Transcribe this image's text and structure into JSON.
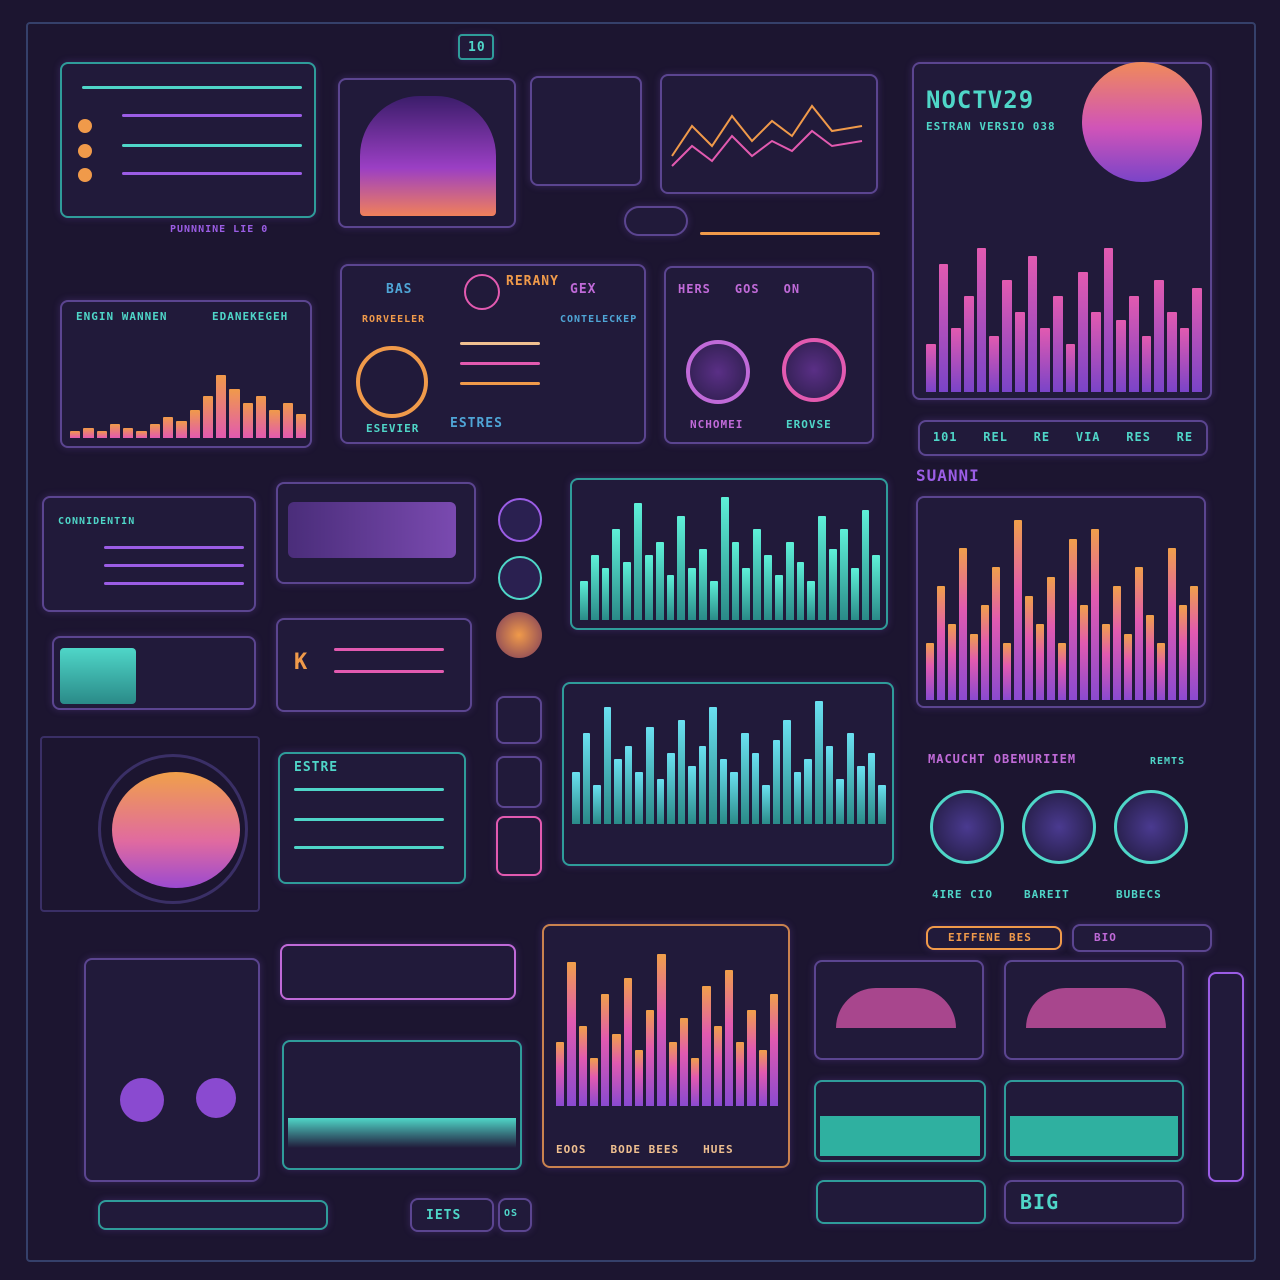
{
  "header": {
    "badge": "10"
  },
  "labels": {
    "top_right_title": "NOCTV29",
    "top_right_sub": "ESTRAN VERSIO 038",
    "panel_a": "PUNNNINE LIE 0",
    "panel_b": "ENGIN WANNEN",
    "panel_c": "EDANEKEGEH",
    "gauge_title": "RERANY",
    "gauge_btn_left": "BAS",
    "gauge_btn_right": "GEX",
    "gauge_sub_left": "RORVEELER",
    "gauge_sub_right": "CONTELECKEP",
    "gauge_foot_left": "ESEVIER",
    "gauge_foot_mid": "ESTRES",
    "knob_btns": [
      "HERS",
      "GOS",
      "ON"
    ],
    "knob_labels": [
      "NCHOMEI",
      "EROVSE"
    ],
    "ratios": [
      "101",
      "REL",
      "RE",
      "VIA",
      "RES",
      "RE"
    ],
    "section_title": "SUANNI",
    "mid_title": "MACUCHT OBEMURIIEM",
    "mid_badge": "REMTS",
    "orbs": [
      "4IRE CIO",
      "BAREIT",
      "BUBECS"
    ],
    "list_title": "CONNIDENTIN",
    "file_title": "ESTRE",
    "bottom_badges": [
      "EIFFENE BES",
      "BIO"
    ],
    "bottom_btns": [
      "IETS",
      "OS"
    ],
    "chart_footer": [
      "EOOS",
      "BODE BEES",
      "HUES"
    ],
    "big_code": "BIG"
  },
  "colors": {
    "teal": "#4fd6c8",
    "purple": "#9b5de5",
    "pink": "#e25ab0",
    "orange": "#f09a4a",
    "bg": "#1c1530"
  },
  "series": {
    "teal_a": [
      0.3,
      0.5,
      0.4,
      0.7,
      0.45,
      0.9,
      0.5,
      0.6,
      0.35,
      0.8,
      0.4,
      0.55,
      0.3,
      0.95,
      0.6,
      0.4,
      0.7,
      0.5,
      0.35,
      0.6,
      0.45,
      0.3,
      0.8,
      0.55,
      0.7,
      0.4,
      0.85,
      0.5
    ],
    "teal_b": [
      0.4,
      0.7,
      0.3,
      0.9,
      0.5,
      0.6,
      0.4,
      0.75,
      0.35,
      0.55,
      0.8,
      0.45,
      0.6,
      0.9,
      0.5,
      0.4,
      0.7,
      0.55,
      0.3,
      0.65,
      0.8,
      0.4,
      0.5,
      0.95,
      0.6,
      0.35,
      0.7,
      0.45,
      0.55,
      0.3
    ],
    "pink_a": [
      0.3,
      0.6,
      0.4,
      0.8,
      0.35,
      0.5,
      0.7,
      0.3,
      0.95,
      0.55,
      0.4,
      0.65,
      0.3,
      0.85,
      0.5,
      0.9,
      0.4,
      0.6,
      0.35,
      0.7,
      0.45,
      0.3,
      0.8,
      0.5,
      0.6
    ],
    "pink_b": [
      0.4,
      0.9,
      0.5,
      0.3,
      0.7,
      0.45,
      0.8,
      0.35,
      0.6,
      0.95,
      0.4,
      0.55,
      0.3,
      0.75,
      0.5,
      0.85,
      0.4,
      0.6,
      0.35,
      0.7
    ],
    "right_top": [
      0.3,
      0.8,
      0.4,
      0.6,
      0.9,
      0.35,
      0.7,
      0.5,
      0.85,
      0.4,
      0.6,
      0.3,
      0.75,
      0.5,
      0.9,
      0.45,
      0.6,
      0.35,
      0.7,
      0.5,
      0.4,
      0.65
    ],
    "small_orange": [
      0.1,
      0.15,
      0.1,
      0.2,
      0.15,
      0.1,
      0.2,
      0.3,
      0.25,
      0.4,
      0.6,
      0.9,
      0.7,
      0.5,
      0.6,
      0.4,
      0.5,
      0.35
    ]
  }
}
